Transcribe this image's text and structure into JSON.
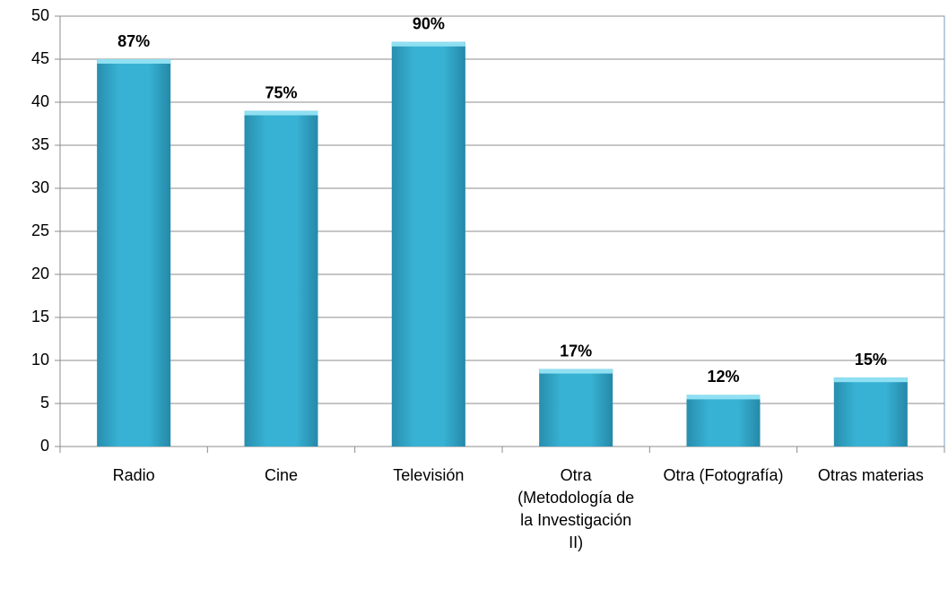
{
  "chart_data": {
    "type": "bar",
    "categories": [
      "Radio",
      "Cine",
      "Televisión",
      "Otra (Metodología de la Investigación II)",
      "Otra (Fotografía)",
      "Otras materias"
    ],
    "values": [
      45,
      39,
      47,
      9,
      6,
      8
    ],
    "annotations": [
      "87%",
      "75%",
      "90%",
      "17%",
      "12%",
      "15%"
    ],
    "color": "#38b2d4",
    "ylim": [
      0,
      50
    ],
    "yticks": [
      0,
      5,
      10,
      15,
      20,
      25,
      30,
      35,
      40,
      45,
      50
    ],
    "grid": true
  }
}
